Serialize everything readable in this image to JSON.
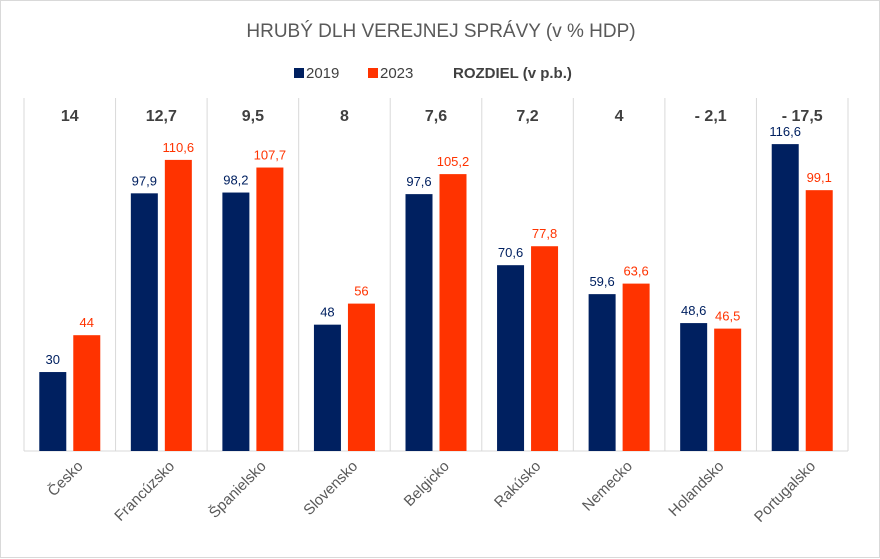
{
  "chart_data": {
    "type": "bar",
    "title": "HRUBÝ DLH VEREJNEJ SPRÁVY (v % HDP)",
    "categories": [
      "Česko",
      "Francúzsko",
      "Španielsko",
      "Slovensko",
      "Belgicko",
      "Rakúsko",
      "Nemecko",
      "Holandsko",
      "Portugalsko"
    ],
    "series": [
      {
        "name": "2019",
        "color": "#002060",
        "values": [
          30,
          97.9,
          98.2,
          48,
          97.6,
          70.6,
          59.6,
          48.6,
          116.6
        ],
        "labels": [
          "30",
          "97,9",
          "98,2",
          "48",
          "97,6",
          "70,6",
          "59,6",
          "48,6",
          "116,6"
        ]
      },
      {
        "name": "2023",
        "color": "#ff3300",
        "values": [
          44,
          110.6,
          107.7,
          56,
          105.2,
          77.8,
          63.6,
          46.5,
          99.1
        ],
        "labels": [
          "44",
          "110,6",
          "107,7",
          "56",
          "105,2",
          "77,8",
          "63,6",
          "46,5",
          "99,1"
        ]
      }
    ],
    "difference": {
      "label": "ROZDIEL (v p.b.)",
      "values": [
        14,
        12.7,
        9.5,
        8,
        7.6,
        7.2,
        4,
        -2.1,
        -17.5
      ],
      "labels": [
        "14",
        "12,7",
        "9,5",
        "8",
        "7,6",
        "7,2",
        "4",
        "- 2,1",
        "- 17,5"
      ]
    },
    "ylim": [
      0,
      125
    ],
    "legend_position": "top",
    "grid": false,
    "separator_color": "#d9d9d9"
  }
}
